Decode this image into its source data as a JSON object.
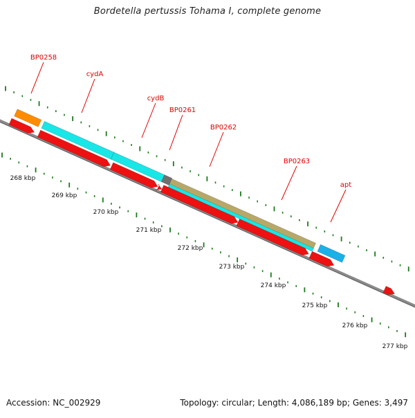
{
  "title": "Bordetella pertussis Tohama I, complete genome",
  "footer": {
    "accession": "Accession: NC_002929",
    "summary": "Topology: circular; Length: 4,086,189 bp; Genes: 3,497"
  },
  "scale_ticks": [
    "268 kbp",
    "269 kbp",
    "270 kbp",
    "271 kbp",
    "272 kbp",
    "273 kbp",
    "274 kbp",
    "275 kbp",
    "276 kbp",
    "277 kbp"
  ],
  "gene_labels": [
    "BP0258",
    "cydA",
    "cydB",
    "BP0261",
    "BP0262",
    "BP0263",
    "apt"
  ],
  "colors": {
    "label": "#e00000",
    "backbone": "#8a8a8a",
    "tick": "#1a7a1a",
    "red_feature": "#ee1111",
    "cyan_feature": "#19e6e6",
    "orange_feature": "#ff8c00",
    "olive_feature": "#b8a868",
    "blue_feature": "#1ab0e8",
    "gray_feature": "#707070"
  }
}
